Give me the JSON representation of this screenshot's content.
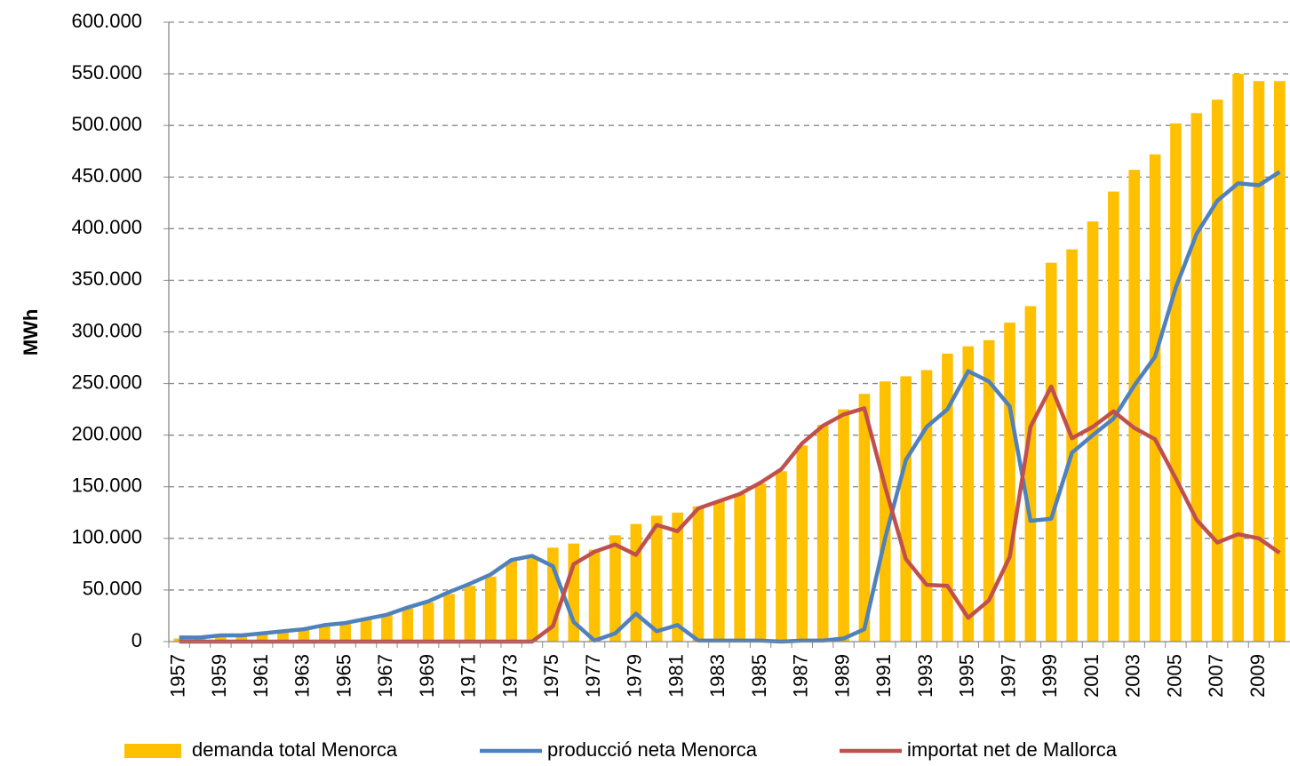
{
  "chart_data": {
    "type": "bar_line",
    "y_label": "MWh",
    "categories": [
      "1957",
      null,
      "1959",
      null,
      "1961",
      null,
      "1963",
      null,
      "1965",
      null,
      "1967",
      null,
      "1969",
      null,
      "1971",
      null,
      "1973",
      null,
      "1975",
      null,
      "1977",
      null,
      "1979",
      null,
      "1981",
      null,
      "1983",
      null,
      "1985",
      null,
      "1987",
      null,
      "1989",
      null,
      "1991",
      null,
      "1993",
      null,
      "1995",
      null,
      "1997",
      null,
      "1999",
      null,
      "2001",
      null,
      "2003",
      null,
      "2005",
      null,
      "2007",
      null,
      "2009",
      null
    ],
    "series": [
      {
        "name": "demanda total Menorca",
        "kind": "bar",
        "color": "#ffc000",
        "values": [
          3000,
          4000,
          5000,
          6000,
          8000,
          10000,
          12000,
          15000,
          18000,
          22000,
          26000,
          32000,
          38000,
          46000,
          54000,
          63000,
          78000,
          83000,
          91000,
          95000,
          89000,
          103000,
          114000,
          122000,
          125000,
          131000,
          136000,
          143000,
          153000,
          165000,
          190000,
          210000,
          225000,
          240000,
          252000,
          257000,
          263000,
          279000,
          286000,
          292000,
          309000,
          325000,
          367000,
          380000,
          407000,
          436000,
          457000,
          472000,
          502000,
          512000,
          525000,
          550000,
          543000,
          543000
        ]
      },
      {
        "name": "producció  neta Menorca",
        "kind": "line",
        "color": "#4f81bd",
        "values": [
          4000,
          4000,
          6000,
          6000,
          8000,
          10000,
          12000,
          16000,
          18000,
          22000,
          26000,
          33000,
          39000,
          48000,
          56000,
          65000,
          79000,
          83000,
          73000,
          19000,
          1000,
          8000,
          27000,
          10000,
          16000,
          1000,
          1000,
          1000,
          1000,
          0,
          1000,
          1000,
          3000,
          12000,
          100000,
          176000,
          208000,
          225000,
          262000,
          252000,
          228000,
          117000,
          119000,
          183000,
          200000,
          216000,
          248000,
          276000,
          343000,
          395000,
          427000,
          444000,
          442000,
          455000
        ]
      },
      {
        "name": "importat net de Mallorca",
        "kind": "line",
        "color": "#c0504d",
        "values": [
          0,
          0,
          0,
          0,
          0,
          0,
          0,
          0,
          0,
          0,
          0,
          0,
          0,
          0,
          0,
          0,
          0,
          0,
          15000,
          75000,
          87000,
          94000,
          84000,
          113000,
          107000,
          129000,
          136000,
          143000,
          154000,
          167000,
          192000,
          209000,
          220000,
          226000,
          150000,
          80000,
          55000,
          54000,
          23000,
          40000,
          82000,
          208000,
          247000,
          197000,
          208000,
          223000,
          207000,
          196000,
          158000,
          118000,
          96000,
          104000,
          100000,
          86000
        ]
      }
    ],
    "ylim": [
      0,
      600000
    ],
    "yticks": [
      0,
      {
        "value": 50000,
        "label": "50.000"
      },
      {
        "value": 100000,
        "label": "100.000"
      },
      {
        "value": 150000,
        "label": "150.000"
      },
      {
        "value": 200000,
        "label": "200.000"
      },
      {
        "value": 250000,
        "label": "250.000"
      },
      {
        "value": 300000,
        "label": "300.000"
      },
      {
        "value": 350000,
        "label": "350.000"
      },
      {
        "value": 400000,
        "label": "400.000"
      },
      {
        "value": 450000,
        "label": "450.000"
      },
      {
        "value": 500000,
        "label": "500.000"
      },
      {
        "value": 550000,
        "label": "550.000"
      },
      {
        "value": 600000,
        "label": "600.000"
      }
    ],
    "grid": true,
    "legend": "bottom"
  }
}
